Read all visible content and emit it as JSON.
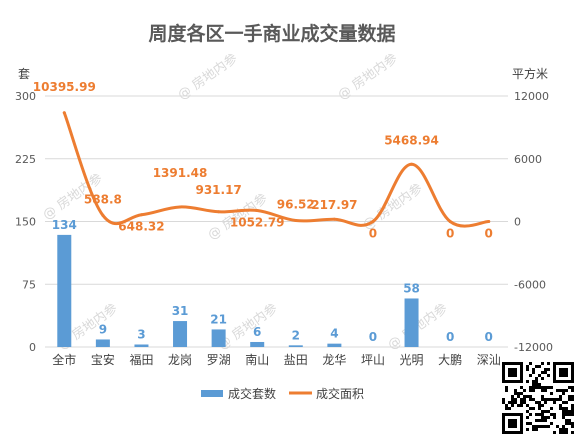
{
  "chart_data": {
    "type": "bar+line",
    "title": "周度各区一手商业成交量数据",
    "y_left_unit": "套",
    "y_right_unit": "平方米",
    "categories": [
      "全市",
      "宝安",
      "福田",
      "龙岗",
      "罗湖",
      "南山",
      "盐田",
      "龙华",
      "坪山",
      "光明",
      "大鹏",
      "深汕"
    ],
    "ylim_left": [
      0,
      300
    ],
    "ylim_right": [
      -12000,
      12000
    ],
    "yticks_left": [
      "0",
      "75",
      "150",
      "225",
      "300"
    ],
    "yticks_right": [
      "-12000",
      "-6000",
      "0",
      "6000",
      "12000"
    ],
    "grid": true,
    "legend_position": "bottom",
    "series": [
      {
        "name": "成交套数",
        "type": "bar",
        "axis": "left",
        "color": "#5b9bd5",
        "values": [
          134,
          9,
          3,
          31,
          21,
          6,
          2,
          4,
          0,
          58,
          0,
          0
        ],
        "labels": [
          "134",
          "9",
          "3",
          "31",
          "21",
          "6",
          "2",
          "4",
          "0",
          "58",
          "0",
          "0"
        ]
      },
      {
        "name": "成交面积",
        "type": "line",
        "axis": "right",
        "color": "#ed7d31",
        "values": [
          10395.99,
          588.8,
          648.32,
          1391.48,
          931.17,
          1052.79,
          96.52,
          217.97,
          0,
          5468.94,
          0,
          0
        ],
        "labels": [
          "10395.99",
          "588.8",
          "648.32",
          "1391.48",
          "931.17",
          "1052.79",
          "96.52",
          "217.97",
          "0",
          "5468.94",
          "0",
          "0"
        ]
      }
    ],
    "watermark": "@ 房地内参"
  }
}
